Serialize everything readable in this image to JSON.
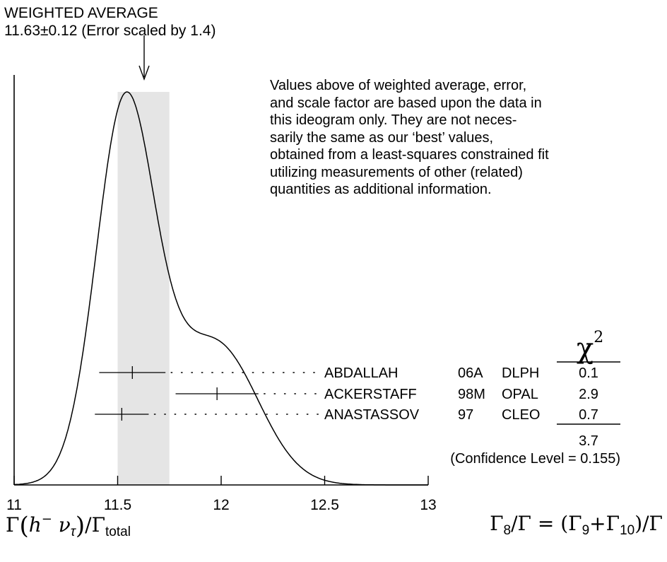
{
  "header": {
    "title": "WEIGHTED AVERAGE",
    "value_line": "11.63±0.12 (Error scaled by 1.4)"
  },
  "note": "Values above of weighted average, error,\nand scale factor are based upon the data in\nthis ideogram only.  They are not neces-\nsarily the same as our ‘best’ values,\nobtained from a least-squares constrained fit\nutilizing measurements of other (related)\nquantities as additional information.",
  "chi2_symbol": "χ",
  "chi2_power": "2",
  "chi2_total": "3.7",
  "confidence": "(Confidence Level = 0.155)",
  "left_label": {
    "gamma": "Γ",
    "open": "(",
    "h": "h",
    "minus": "−",
    "nu": " ν",
    "tau": "τ",
    "close": ")",
    "slash": "/Γ",
    "total": "total"
  },
  "right_label": {
    "g8": "Γ",
    "s8": "8",
    "mid": "/Γ = (Γ",
    "s9": "9",
    "plus": "+Γ",
    "s10": "10",
    "end": ")/Γ"
  },
  "chart_data": {
    "type": "ideogram",
    "xlim": [
      11,
      13
    ],
    "x_ticks": [
      "11",
      "11.5",
      "12",
      "12.5",
      "13"
    ],
    "weighted_average": {
      "value": 11.63,
      "error": 0.12,
      "scale_factor": 1.4,
      "band": [
        11.5,
        11.75
      ]
    },
    "measurements": [
      {
        "author": "ABDALLAH",
        "year": "06A",
        "experiment": "DLPH",
        "value": 11.571,
        "error": 0.16,
        "chi2": "0.1"
      },
      {
        "author": "ACKERSTAFF",
        "year": "98M",
        "experiment": "OPAL",
        "value": 11.98,
        "error": 0.2,
        "chi2": "2.9"
      },
      {
        "author": "ANASTASSOV",
        "year": "97",
        "experiment": "CLEO",
        "value": 11.52,
        "error": 0.13,
        "chi2": "0.7"
      }
    ]
  }
}
